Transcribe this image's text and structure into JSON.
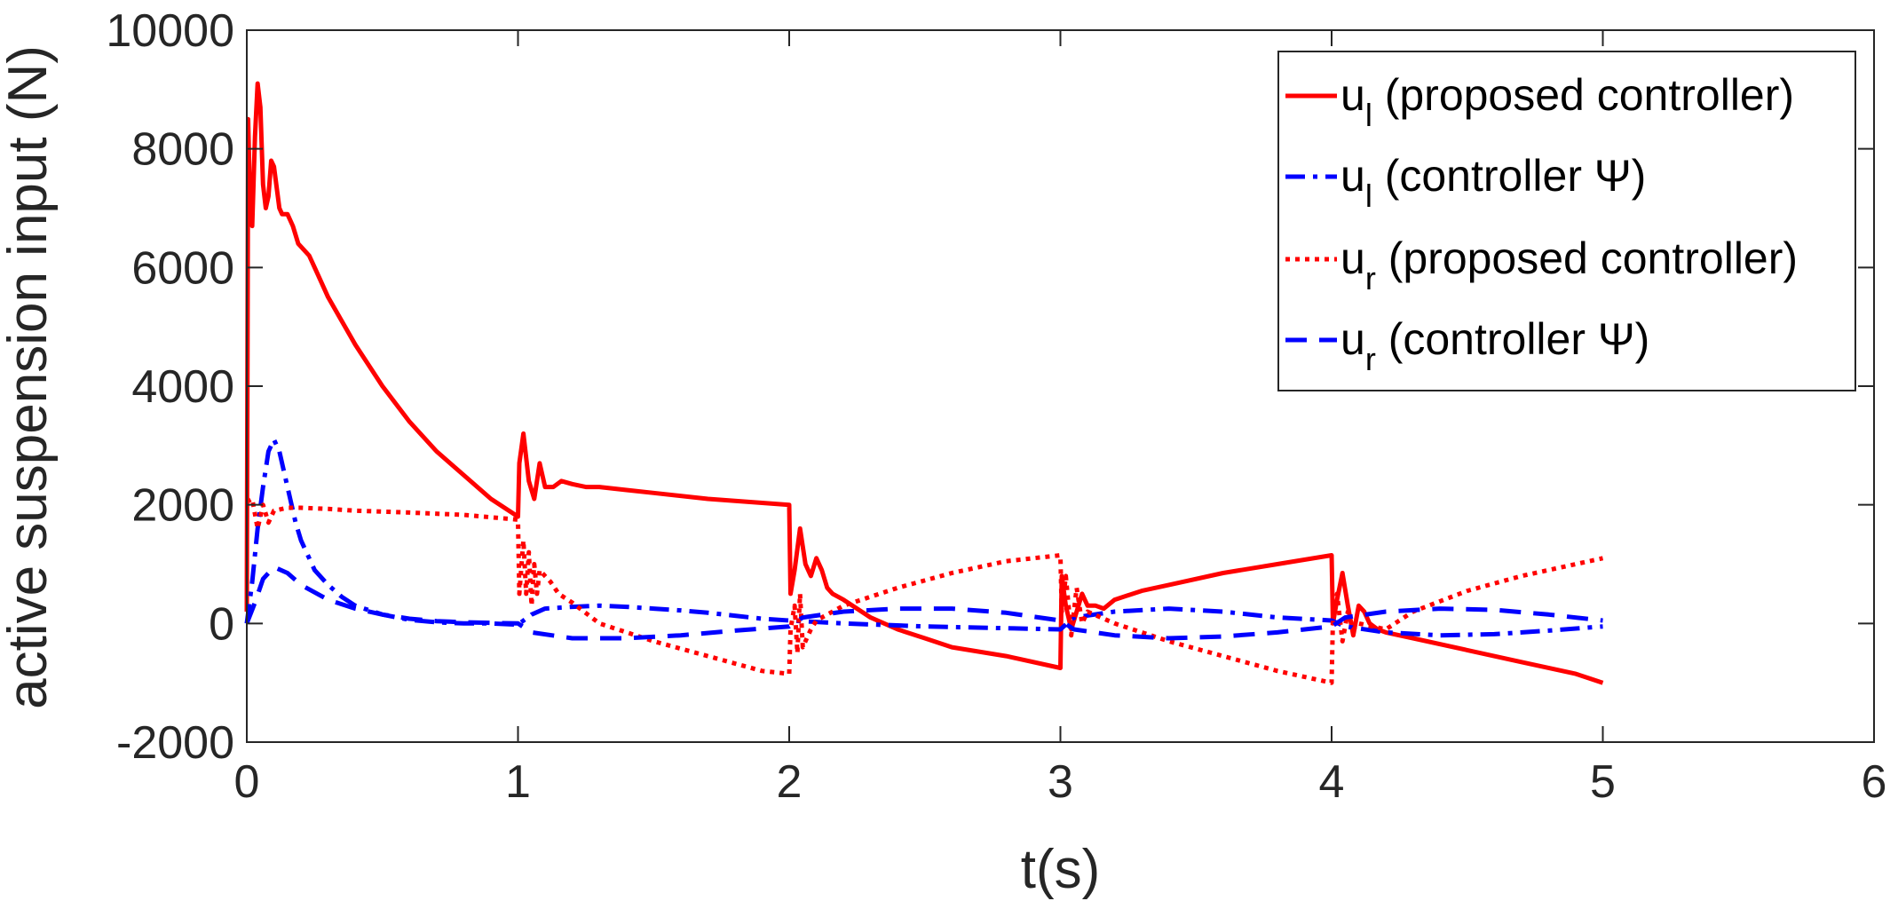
{
  "chart_data": {
    "type": "line",
    "xlabel": "t(s)",
    "ylabel": "active suspension input (N)",
    "xlim": [
      0,
      6
    ],
    "ylim": [
      -2000,
      10000
    ],
    "x_ticks": [
      0,
      1,
      2,
      3,
      4,
      5,
      6
    ],
    "y_ticks": [
      -2000,
      0,
      2000,
      4000,
      6000,
      8000,
      10000
    ],
    "x_tick_labels": [
      "0",
      "1",
      "2",
      "3",
      "4",
      "5",
      "6"
    ],
    "y_tick_labels": [
      "-2000",
      "0",
      "2000",
      "4000",
      "6000",
      "8000",
      "10000"
    ],
    "grid": false,
    "box": true,
    "legend_position": "top-right",
    "series": [
      {
        "name": "u_l (proposed controller)",
        "legend_main": "u",
        "legend_sub": "l",
        "legend_rest": " (proposed controller)",
        "color": "#ff0000",
        "dash": "solid",
        "x": [
          0,
          0.005,
          0.01,
          0.02,
          0.03,
          0.04,
          0.05,
          0.06,
          0.07,
          0.08,
          0.09,
          0.1,
          0.12,
          0.13,
          0.15,
          0.17,
          0.19,
          0.21,
          0.23,
          0.25,
          0.27,
          0.3,
          0.35,
          0.4,
          0.5,
          0.6,
          0.7,
          0.8,
          0.9,
          1.0,
          1.005,
          1.02,
          1.04,
          1.06,
          1.08,
          1.1,
          1.13,
          1.16,
          1.2,
          1.25,
          1.3,
          1.4,
          1.5,
          1.7,
          2.0,
          2.005,
          2.02,
          2.04,
          2.06,
          2.08,
          2.1,
          2.12,
          2.14,
          2.16,
          2.2,
          2.25,
          2.3,
          2.4,
          2.5,
          2.6,
          2.8,
          3.0,
          3.005,
          3.02,
          3.04,
          3.06,
          3.08,
          3.1,
          3.13,
          3.16,
          3.2,
          3.3,
          3.4,
          3.6,
          3.8,
          4.0,
          4.005,
          4.02,
          4.04,
          4.06,
          4.08,
          4.1,
          4.12,
          4.14,
          4.17,
          4.2,
          4.3,
          4.5,
          4.7,
          4.9,
          5.0
        ],
        "y": [
          200,
          8500,
          7500,
          6700,
          8200,
          9100,
          8700,
          7400,
          7000,
          7200,
          7800,
          7700,
          7000,
          6900,
          6900,
          6700,
          6400,
          6300,
          6200,
          6000,
          5800,
          5500,
          5100,
          4700,
          4000,
          3400,
          2900,
          2500,
          2100,
          1800,
          2700,
          3200,
          2400,
          2100,
          2700,
          2300,
          2300,
          2400,
          2350,
          2300,
          2300,
          2250,
          2200,
          2100,
          2000,
          500,
          900,
          1600,
          1000,
          800,
          1100,
          900,
          600,
          500,
          400,
          250,
          100,
          -100,
          -250,
          -400,
          -550,
          -750,
          800,
          300,
          -100,
          200,
          500,
          300,
          300,
          250,
          400,
          550,
          650,
          850,
          1000,
          1150,
          0,
          400,
          850,
          300,
          -200,
          300,
          200,
          0,
          -100,
          -150,
          -250,
          -450,
          -650,
          -850,
          -1000
        ]
      },
      {
        "name": "u_l (controller Ψ)",
        "legend_main": "u",
        "legend_sub": "l",
        "legend_rest": " (controller Ψ)",
        "color": "#0000ff",
        "dash": "dashdot",
        "x": [
          0,
          0.02,
          0.04,
          0.06,
          0.08,
          0.1,
          0.12,
          0.14,
          0.16,
          0.18,
          0.2,
          0.25,
          0.3,
          0.35,
          0.4,
          0.5,
          0.6,
          0.7,
          0.8,
          0.9,
          1.0,
          1.05,
          1.1,
          1.2,
          1.3,
          1.4,
          1.5,
          1.6,
          1.7,
          1.8,
          1.9,
          2.0,
          2.2,
          2.5,
          2.8,
          3.0,
          3.05,
          3.2,
          3.4,
          3.6,
          3.8,
          4.0,
          4.05,
          4.2,
          4.4,
          4.6,
          4.8,
          5.0
        ],
        "y": [
          0,
          700,
          1600,
          2300,
          2900,
          3100,
          2900,
          2500,
          2100,
          1700,
          1400,
          900,
          650,
          450,
          300,
          150,
          60,
          20,
          0,
          0,
          -20,
          150,
          250,
          280,
          300,
          280,
          250,
          220,
          180,
          130,
          80,
          50,
          0,
          -50,
          -80,
          -100,
          100,
          200,
          250,
          200,
          100,
          50,
          -50,
          -150,
          -200,
          -180,
          -120,
          -50
        ]
      },
      {
        "name": "u_r (proposed controller)",
        "legend_main": "u",
        "legend_sub": "r",
        "legend_rest": " (proposed controller)",
        "color": "#ff0000",
        "dash": "dotted",
        "x": [
          0,
          0.02,
          0.04,
          0.06,
          0.08,
          0.1,
          0.15,
          0.2,
          0.3,
          0.4,
          0.6,
          0.8,
          1.0,
          1.005,
          1.02,
          1.03,
          1.04,
          1.05,
          1.06,
          1.07,
          1.08,
          1.1,
          1.12,
          1.15,
          1.2,
          1.3,
          1.5,
          1.7,
          1.9,
          2.0,
          2.005,
          2.02,
          2.03,
          2.04,
          2.05,
          2.06,
          2.08,
          2.1,
          2.2,
          2.4,
          2.6,
          2.8,
          3.0,
          3.005,
          3.02,
          3.04,
          3.06,
          3.08,
          3.1,
          3.2,
          3.4,
          3.6,
          3.8,
          4.0,
          4.005,
          4.02,
          4.04,
          4.06,
          4.08,
          4.1,
          4.15,
          4.2,
          4.3,
          4.5,
          4.7,
          4.9,
          5.0
        ],
        "y": [
          2050,
          2100,
          1600,
          2000,
          1700,
          1900,
          1950,
          1950,
          1930,
          1900,
          1870,
          1830,
          1750,
          500,
          1400,
          500,
          1200,
          300,
          1000,
          500,
          900,
          800,
          700,
          500,
          350,
          0,
          -300,
          -550,
          -800,
          -850,
          -100,
          300,
          -500,
          500,
          -400,
          -300,
          -100,
          50,
          300,
          600,
          850,
          1050,
          1150,
          200,
          800,
          -200,
          600,
          0,
          200,
          0,
          -300,
          -550,
          -800,
          -1000,
          100,
          500,
          -300,
          200,
          -100,
          0,
          -50,
          -100,
          200,
          550,
          800,
          1000,
          1100
        ]
      },
      {
        "name": "u_r (controller Ψ)",
        "legend_main": "u",
        "legend_sub": "r",
        "legend_rest": " (controller Ψ)",
        "color": "#0000ff",
        "dash": "dashed",
        "x": [
          0,
          0.03,
          0.06,
          0.1,
          0.15,
          0.2,
          0.3,
          0.4,
          0.5,
          0.6,
          0.7,
          0.8,
          0.9,
          1.0,
          1.05,
          1.2,
          1.4,
          1.6,
          1.8,
          2.0,
          2.05,
          2.2,
          2.4,
          2.6,
          2.8,
          3.0,
          3.05,
          3.2,
          3.4,
          3.6,
          3.8,
          4.0,
          4.05,
          4.2,
          4.4,
          4.6,
          4.8,
          5.0
        ],
        "y": [
          0,
          350,
          750,
          950,
          850,
          650,
          400,
          250,
          150,
          80,
          40,
          20,
          10,
          0,
          -150,
          -250,
          -250,
          -200,
          -120,
          -50,
          100,
          200,
          250,
          250,
          180,
          50,
          -100,
          -200,
          -250,
          -220,
          -150,
          -50,
          100,
          200,
          250,
          230,
          150,
          50
        ]
      }
    ]
  }
}
